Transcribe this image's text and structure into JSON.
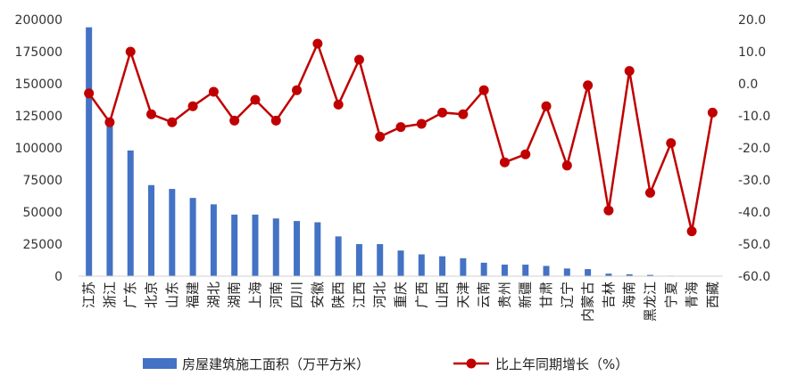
{
  "chart_data": {
    "type": "bar",
    "combo": "bar+line",
    "categories": [
      "江苏",
      "浙江",
      "广东",
      "北京",
      "山东",
      "福建",
      "湖北",
      "湖南",
      "上海",
      "河南",
      "四川",
      "安徽",
      "陕西",
      "江西",
      "河北",
      "重庆",
      "广西",
      "山西",
      "天津",
      "云南",
      "贵州",
      "新疆",
      "甘肃",
      "辽宁",
      "内蒙古",
      "吉林",
      "海南",
      "黑龙江",
      "宁夏",
      "青海",
      "西藏"
    ],
    "series": [
      {
        "name": "房屋建筑施工面积（万平方米）",
        "type": "bar",
        "axis": "left",
        "color": "#4472C4",
        "values": [
          194000,
          123000,
          98000,
          71000,
          68000,
          61000,
          56000,
          48000,
          48000,
          45000,
          43000,
          42000,
          31000,
          25000,
          25000,
          20000,
          17000,
          15500,
          14000,
          10500,
          9000,
          9000,
          8000,
          6000,
          5500,
          2000,
          1500,
          1000,
          400,
          300,
          150
        ]
      },
      {
        "name": "比上年同期增长（%）",
        "type": "line",
        "axis": "right",
        "color": "#C00000",
        "values": [
          -3.0,
          -12.0,
          10.0,
          -9.5,
          -12.0,
          -7.0,
          -2.5,
          -11.5,
          -5.0,
          -11.5,
          -2.0,
          12.5,
          -6.5,
          7.5,
          -16.5,
          -13.5,
          -12.5,
          -9.0,
          -9.5,
          -2.0,
          -24.5,
          -22.0,
          -7.0,
          -25.5,
          -0.5,
          -39.5,
          4.0,
          -34.0,
          -18.5,
          -46.0,
          -9.0
        ]
      }
    ],
    "ylim_left": [
      0,
      200000
    ],
    "yticks_left": [
      "0",
      "25000",
      "50000",
      "75000",
      "100000",
      "125000",
      "150000",
      "175000",
      "200000"
    ],
    "ylim_right": [
      -60,
      20
    ],
    "yticks_right": [
      "-60.0",
      "-50.0",
      "-40.0",
      "-30.0",
      "-20.0",
      "-10.0",
      "0.0",
      "10.0",
      "20.0"
    ],
    "grid": false,
    "legend_position": "bottom"
  }
}
